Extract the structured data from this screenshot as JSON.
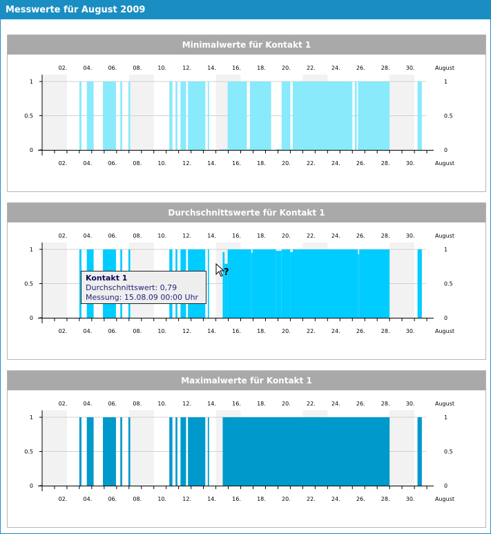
{
  "window": {
    "title": "Messwerte für August 2009"
  },
  "month_label": "August",
  "tooltip": {
    "title": "Kontakt 1",
    "line1": "Durchschnittswert: 0,79",
    "line2": "Messung: 15.08.09 00:00 Uhr"
  },
  "colors": {
    "header": "#1a8ec2",
    "panel_head": "#a9a9a9",
    "weekend_band": "#f2f2f2",
    "min": "#88eafb",
    "avg": "#00ccff",
    "max": "#0099cc"
  },
  "chart_data": [
    {
      "type": "bar",
      "title": "Minimalwerte für Kontakt 1",
      "color": "#88eafb",
      "ylim": [
        0,
        1
      ],
      "yticks": [
        "0",
        "0.5",
        "1"
      ],
      "xtick_labels": [
        "02.",
        "04.",
        "06.",
        "08.",
        "10.",
        "12.",
        "14.",
        "16.",
        "18.",
        "20.",
        "22.",
        "24.",
        "26.",
        "28.",
        "30."
      ],
      "weekend_days": [
        1,
        2,
        8,
        9,
        15,
        16,
        22,
        23,
        29,
        30
      ],
      "bars": [
        {
          "start": 3.0,
          "end": 3.17,
          "value": 1
        },
        {
          "start": 3.6,
          "end": 4.15,
          "value": 1
        },
        {
          "start": 4.9,
          "end": 5.95,
          "value": 1
        },
        {
          "start": 6.3,
          "end": 6.45,
          "value": 1
        },
        {
          "start": 6.95,
          "end": 7.1,
          "value": 1
        },
        {
          "start": 10.25,
          "end": 10.5,
          "value": 1
        },
        {
          "start": 10.75,
          "end": 10.9,
          "value": 1
        },
        {
          "start": 11.15,
          "end": 11.6,
          "value": 1
        },
        {
          "start": 11.75,
          "end": 13.15,
          "value": 1
        },
        {
          "start": 13.35,
          "end": 13.45,
          "value": 1
        },
        {
          "start": 14.3,
          "end": 14.95,
          "value": 0
        },
        {
          "start": 14.95,
          "end": 16.5,
          "value": 1
        },
        {
          "start": 16.5,
          "end": 16.75,
          "value": 0
        },
        {
          "start": 16.75,
          "end": 18.45,
          "value": 1
        },
        {
          "start": 18.85,
          "end": 19.3,
          "value": 0
        },
        {
          "start": 19.3,
          "end": 20.0,
          "value": 1
        },
        {
          "start": 20.0,
          "end": 20.2,
          "value": 0
        },
        {
          "start": 20.2,
          "end": 25.0,
          "value": 1
        },
        {
          "start": 25.2,
          "end": 25.35,
          "value": 1
        },
        {
          "start": 25.45,
          "end": 28.0,
          "value": 1
        },
        {
          "start": 30.25,
          "end": 30.6,
          "value": 1
        }
      ]
    },
    {
      "type": "bar",
      "title": "Durchschnittswerte für Kontakt 1",
      "color": "#00ccff",
      "ylim": [
        0,
        1
      ],
      "yticks": [
        "0",
        "0.5",
        "1"
      ],
      "xtick_labels": [
        "02.",
        "04.",
        "06.",
        "08.",
        "10.",
        "12.",
        "14.",
        "16.",
        "18.",
        "20.",
        "22.",
        "24.",
        "26.",
        "28.",
        "30."
      ],
      "weekend_days": [
        1,
        2,
        8,
        9,
        15,
        16,
        22,
        23,
        29,
        30
      ],
      "bars": [
        {
          "start": 3.0,
          "end": 3.17,
          "value": 1
        },
        {
          "start": 3.6,
          "end": 4.15,
          "value": 1
        },
        {
          "start": 4.9,
          "end": 5.95,
          "value": 1
        },
        {
          "start": 6.3,
          "end": 6.45,
          "value": 1
        },
        {
          "start": 6.95,
          "end": 7.1,
          "value": 1
        },
        {
          "start": 10.25,
          "end": 10.5,
          "value": 1
        },
        {
          "start": 10.75,
          "end": 10.9,
          "value": 1
        },
        {
          "start": 11.15,
          "end": 11.6,
          "value": 1
        },
        {
          "start": 11.75,
          "end": 13.15,
          "value": 1
        },
        {
          "start": 13.35,
          "end": 13.45,
          "value": 1
        },
        {
          "start": 14.55,
          "end": 14.7,
          "value": 0.96
        },
        {
          "start": 14.7,
          "end": 14.95,
          "value": 0.79
        },
        {
          "start": 14.95,
          "end": 16.85,
          "value": 1
        },
        {
          "start": 16.85,
          "end": 16.95,
          "value": 0.95
        },
        {
          "start": 16.95,
          "end": 18.85,
          "value": 1
        },
        {
          "start": 18.85,
          "end": 19.3,
          "value": 0.98
        },
        {
          "start": 19.3,
          "end": 20.0,
          "value": 1
        },
        {
          "start": 20.0,
          "end": 20.2,
          "value": 0.96
        },
        {
          "start": 20.2,
          "end": 25.45,
          "value": 1
        },
        {
          "start": 25.45,
          "end": 25.55,
          "value": 0.93
        },
        {
          "start": 25.55,
          "end": 28.0,
          "value": 1
        },
        {
          "start": 30.25,
          "end": 30.6,
          "value": 1
        }
      ]
    },
    {
      "type": "bar",
      "title": "Maximalwerte für Kontakt 1",
      "color": "#0099cc",
      "ylim": [
        0,
        1
      ],
      "yticks": [
        "0",
        "0.5",
        "1"
      ],
      "xtick_labels": [
        "02.",
        "04.",
        "06.",
        "08.",
        "10.",
        "12.",
        "14.",
        "16.",
        "18.",
        "20.",
        "22.",
        "24.",
        "26.",
        "28.",
        "30."
      ],
      "weekend_days": [
        1,
        2,
        8,
        9,
        15,
        16,
        22,
        23,
        29,
        30
      ],
      "bars": [
        {
          "start": 3.0,
          "end": 3.17,
          "value": 1
        },
        {
          "start": 3.6,
          "end": 4.15,
          "value": 1
        },
        {
          "start": 4.9,
          "end": 5.95,
          "value": 1
        },
        {
          "start": 6.3,
          "end": 6.45,
          "value": 1
        },
        {
          "start": 6.95,
          "end": 7.1,
          "value": 1
        },
        {
          "start": 10.25,
          "end": 10.5,
          "value": 1
        },
        {
          "start": 10.75,
          "end": 10.9,
          "value": 1
        },
        {
          "start": 11.15,
          "end": 11.6,
          "value": 1
        },
        {
          "start": 11.75,
          "end": 13.15,
          "value": 1
        },
        {
          "start": 13.35,
          "end": 13.45,
          "value": 1
        },
        {
          "start": 14.55,
          "end": 28.0,
          "value": 1
        },
        {
          "start": 30.25,
          "end": 30.6,
          "value": 1
        }
      ]
    }
  ]
}
